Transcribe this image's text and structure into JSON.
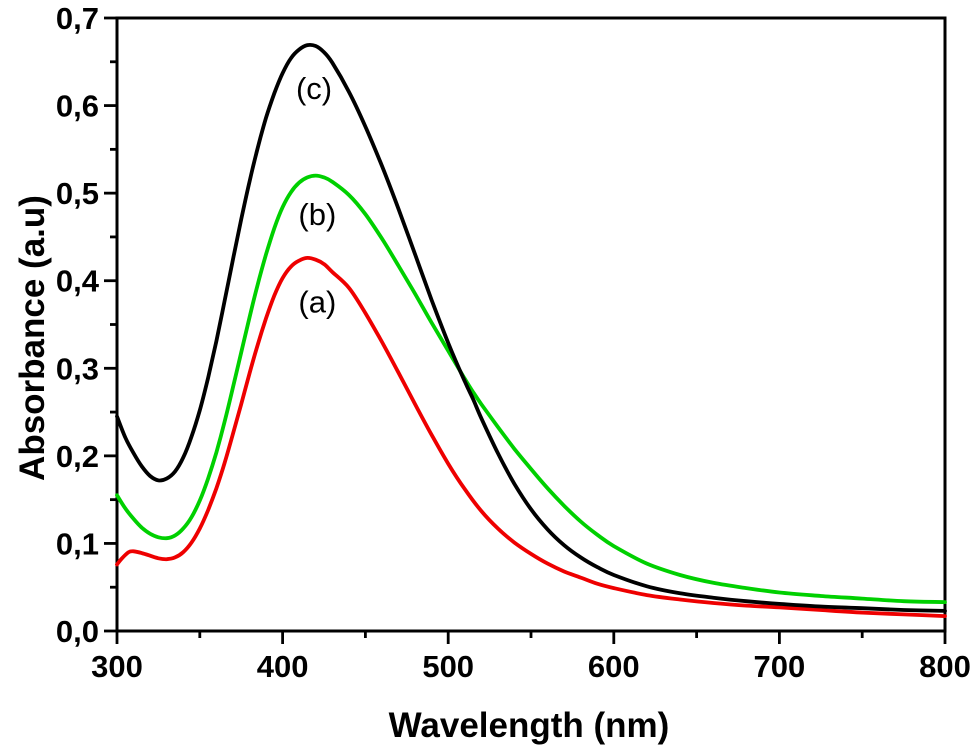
{
  "figure": {
    "description": "UV-Vis absorbance spectra with three labelled curves (a), (b), (c)",
    "background_color": "#ffffff",
    "frame_color": "#000000"
  },
  "chart_data": {
    "type": "line",
    "title": "",
    "xlabel": "Wavelength (nm)",
    "ylabel": "Absorbance (a.u)",
    "xlim": [
      300,
      800
    ],
    "ylim": [
      0,
      0.7
    ],
    "grid": false,
    "legend_position": "none (curves labelled inline)",
    "x_ticks_major": [
      300,
      400,
      500,
      600,
      700,
      800
    ],
    "x_tick_labels": [
      "300",
      "400",
      "500",
      "600",
      "700",
      "800"
    ],
    "x_ticks_minor": [
      350,
      450,
      550,
      650,
      750
    ],
    "y_ticks_major": [
      0.0,
      0.1,
      0.2,
      0.3,
      0.4,
      0.5,
      0.6,
      0.7
    ],
    "y_tick_labels": [
      "0,0",
      "0,1",
      "0,2",
      "0,3",
      "0,4",
      "0,5",
      "0,6",
      "0,7"
    ],
    "y_ticks_minor": [
      0.05,
      0.15,
      0.25,
      0.35,
      0.45,
      0.55,
      0.65
    ],
    "series": [
      {
        "id": "a",
        "label": "(a)",
        "color": "#ee0000",
        "peak": {
          "wavelength_nm": 415,
          "absorbance": 0.426
        },
        "points": [
          [
            300,
            0.076
          ],
          [
            303,
            0.083
          ],
          [
            307,
            0.09
          ],
          [
            310,
            0.091
          ],
          [
            315,
            0.089
          ],
          [
            320,
            0.086
          ],
          [
            325,
            0.083
          ],
          [
            330,
            0.082
          ],
          [
            335,
            0.084
          ],
          [
            340,
            0.09
          ],
          [
            345,
            0.101
          ],
          [
            350,
            0.117
          ],
          [
            355,
            0.138
          ],
          [
            360,
            0.163
          ],
          [
            365,
            0.192
          ],
          [
            370,
            0.225
          ],
          [
            375,
            0.259
          ],
          [
            380,
            0.294
          ],
          [
            385,
            0.327
          ],
          [
            390,
            0.357
          ],
          [
            395,
            0.383
          ],
          [
            400,
            0.403
          ],
          [
            405,
            0.416
          ],
          [
            410,
            0.423
          ],
          [
            415,
            0.426
          ],
          [
            420,
            0.424
          ],
          [
            425,
            0.419
          ],
          [
            430,
            0.41
          ],
          [
            440,
            0.392
          ],
          [
            450,
            0.363
          ],
          [
            460,
            0.33
          ],
          [
            470,
            0.295
          ],
          [
            480,
            0.259
          ],
          [
            490,
            0.224
          ],
          [
            500,
            0.191
          ],
          [
            510,
            0.162
          ],
          [
            520,
            0.137
          ],
          [
            530,
            0.117
          ],
          [
            540,
            0.101
          ],
          [
            550,
            0.088
          ],
          [
            560,
            0.077
          ],
          [
            570,
            0.068
          ],
          [
            580,
            0.061
          ],
          [
            590,
            0.054
          ],
          [
            600,
            0.049
          ],
          [
            620,
            0.041
          ],
          [
            640,
            0.036
          ],
          [
            660,
            0.032
          ],
          [
            680,
            0.029
          ],
          [
            700,
            0.027
          ],
          [
            725,
            0.024
          ],
          [
            750,
            0.021
          ],
          [
            775,
            0.019
          ],
          [
            800,
            0.017
          ]
        ]
      },
      {
        "id": "b",
        "label": "(b)",
        "color": "#00d000",
        "peak": {
          "wavelength_nm": 420,
          "absorbance": 0.52
        },
        "points": [
          [
            300,
            0.155
          ],
          [
            305,
            0.14
          ],
          [
            310,
            0.128
          ],
          [
            315,
            0.118
          ],
          [
            320,
            0.111
          ],
          [
            325,
            0.107
          ],
          [
            330,
            0.106
          ],
          [
            335,
            0.109
          ],
          [
            340,
            0.117
          ],
          [
            345,
            0.13
          ],
          [
            350,
            0.149
          ],
          [
            355,
            0.174
          ],
          [
            360,
            0.204
          ],
          [
            365,
            0.239
          ],
          [
            370,
            0.278
          ],
          [
            375,
            0.318
          ],
          [
            380,
            0.358
          ],
          [
            385,
            0.396
          ],
          [
            390,
            0.43
          ],
          [
            395,
            0.46
          ],
          [
            400,
            0.484
          ],
          [
            405,
            0.501
          ],
          [
            410,
            0.512
          ],
          [
            415,
            0.518
          ],
          [
            420,
            0.52
          ],
          [
            425,
            0.518
          ],
          [
            430,
            0.513
          ],
          [
            440,
            0.498
          ],
          [
            450,
            0.476
          ],
          [
            460,
            0.448
          ],
          [
            470,
            0.417
          ],
          [
            480,
            0.385
          ],
          [
            490,
            0.352
          ],
          [
            500,
            0.32
          ],
          [
            510,
            0.288
          ],
          [
            515,
            0.273
          ],
          [
            520,
            0.259
          ],
          [
            530,
            0.233
          ],
          [
            540,
            0.208
          ],
          [
            550,
            0.185
          ],
          [
            560,
            0.163
          ],
          [
            570,
            0.143
          ],
          [
            580,
            0.125
          ],
          [
            590,
            0.11
          ],
          [
            600,
            0.097
          ],
          [
            620,
            0.077
          ],
          [
            640,
            0.064
          ],
          [
            660,
            0.055
          ],
          [
            680,
            0.049
          ],
          [
            700,
            0.044
          ],
          [
            725,
            0.04
          ],
          [
            750,
            0.037
          ],
          [
            775,
            0.034
          ],
          [
            800,
            0.033
          ]
        ]
      },
      {
        "id": "c",
        "label": "(c)",
        "color": "#000000",
        "peak": {
          "wavelength_nm": 415,
          "absorbance": 0.669
        },
        "points": [
          [
            300,
            0.245
          ],
          [
            305,
            0.221
          ],
          [
            310,
            0.203
          ],
          [
            315,
            0.188
          ],
          [
            320,
            0.177
          ],
          [
            325,
            0.172
          ],
          [
            330,
            0.174
          ],
          [
            335,
            0.182
          ],
          [
            340,
            0.198
          ],
          [
            345,
            0.222
          ],
          [
            350,
            0.252
          ],
          [
            355,
            0.289
          ],
          [
            360,
            0.331
          ],
          [
            365,
            0.377
          ],
          [
            370,
            0.424
          ],
          [
            375,
            0.47
          ],
          [
            380,
            0.513
          ],
          [
            385,
            0.552
          ],
          [
            390,
            0.586
          ],
          [
            395,
            0.614
          ],
          [
            400,
            0.637
          ],
          [
            405,
            0.654
          ],
          [
            410,
            0.664
          ],
          [
            415,
            0.669
          ],
          [
            420,
            0.668
          ],
          [
            425,
            0.661
          ],
          [
            430,
            0.649
          ],
          [
            440,
            0.616
          ],
          [
            450,
            0.576
          ],
          [
            460,
            0.531
          ],
          [
            470,
            0.482
          ],
          [
            480,
            0.43
          ],
          [
            490,
            0.378
          ],
          [
            500,
            0.329
          ],
          [
            510,
            0.285
          ],
          [
            515,
            0.265
          ],
          [
            520,
            0.243
          ],
          [
            530,
            0.203
          ],
          [
            540,
            0.168
          ],
          [
            550,
            0.139
          ],
          [
            560,
            0.116
          ],
          [
            570,
            0.098
          ],
          [
            580,
            0.084
          ],
          [
            590,
            0.073
          ],
          [
            600,
            0.064
          ],
          [
            620,
            0.051
          ],
          [
            640,
            0.043
          ],
          [
            660,
            0.038
          ],
          [
            680,
            0.034
          ],
          [
            700,
            0.031
          ],
          [
            725,
            0.028
          ],
          [
            750,
            0.026
          ],
          [
            775,
            0.024
          ],
          [
            800,
            0.023
          ]
        ]
      }
    ],
    "annotations": [
      {
        "text": "(c)",
        "x": 419,
        "y": 0.62,
        "color": "#000000"
      },
      {
        "text": "(b)",
        "x": 421,
        "y": 0.476,
        "color": "#000000"
      },
      {
        "text": "(a)",
        "x": 421,
        "y": 0.376,
        "color": "#000000"
      }
    ]
  }
}
